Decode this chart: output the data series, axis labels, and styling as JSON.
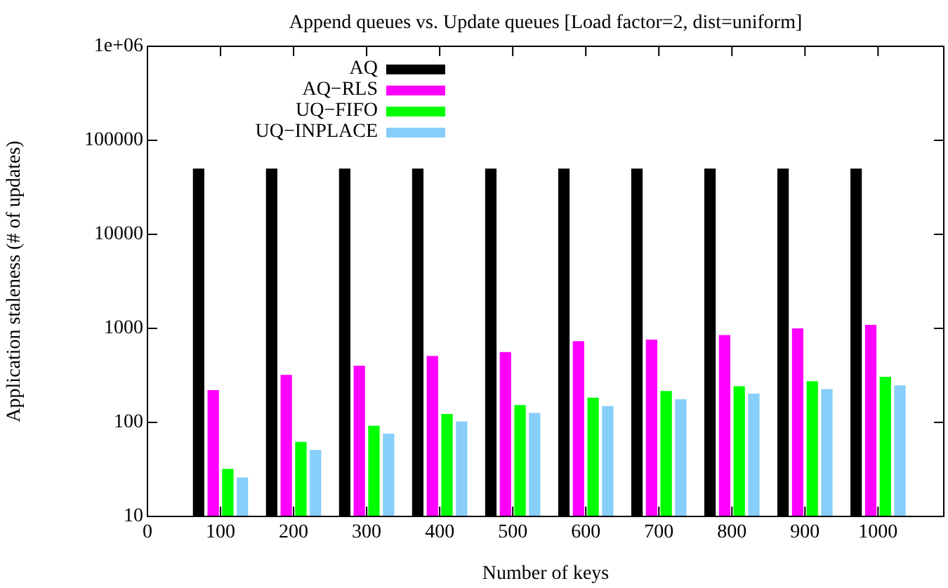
{
  "chart_data": {
    "type": "bar",
    "title": "Append queues vs. Update queues [Load factor=2, dist=uniform]",
    "xlabel": "Number of keys",
    "ylabel": "Application staleness (# of updates)",
    "x": [
      100,
      200,
      300,
      400,
      500,
      600,
      700,
      800,
      900,
      1000
    ],
    "series": [
      {
        "name": "AQ",
        "color": "#000000",
        "values": [
          50000,
          50000,
          50000,
          50000,
          50000,
          50000,
          50000,
          50000,
          50000,
          50000
        ]
      },
      {
        "name": "AQ−RLS",
        "color": "#ff00ff",
        "values": [
          220,
          320,
          400,
          510,
          560,
          730,
          760,
          850,
          1000,
          1090
        ]
      },
      {
        "name": "UQ−FIFO",
        "color": "#00ff00",
        "values": [
          32,
          62,
          92,
          123,
          153,
          183,
          216,
          242,
          275,
          305
        ]
      },
      {
        "name": "UQ−INPLACE",
        "color": "#87cefa",
        "values": [
          26,
          51,
          76,
          102,
          126,
          149,
          176,
          202,
          226,
          248
        ]
      }
    ],
    "xlim": [
      0,
      1090
    ],
    "xticks": [
      0,
      100,
      200,
      300,
      400,
      500,
      600,
      700,
      800,
      900,
      1000
    ],
    "ylim": [
      10,
      1000000
    ],
    "yticks": [
      10,
      100,
      1000,
      10000,
      100000,
      {
        "value": 1000000,
        "label": "1e+06"
      }
    ],
    "log": "y",
    "grid": false,
    "legend": "top left"
  }
}
